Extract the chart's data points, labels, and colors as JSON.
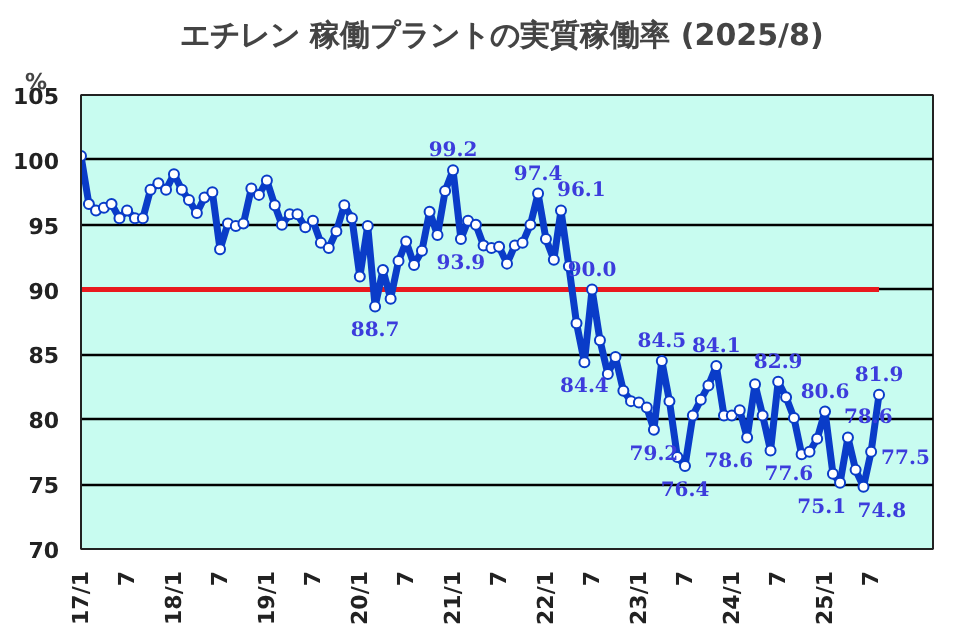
{
  "chart_data": {
    "type": "line",
    "title": "エチレン  稼働プラントの実質稼働率 (2025/8)",
    "ylabel": "%",
    "x": [
      "2017-01",
      "2017-02",
      "2017-03",
      "2017-04",
      "2017-05",
      "2017-06",
      "2017-07",
      "2017-08",
      "2017-09",
      "2017-10",
      "2017-11",
      "2017-12",
      "2018-01",
      "2018-02",
      "2018-03",
      "2018-04",
      "2018-05",
      "2018-06",
      "2018-07",
      "2018-08",
      "2018-09",
      "2018-10",
      "2018-11",
      "2018-12",
      "2019-01",
      "2019-02",
      "2019-03",
      "2019-04",
      "2019-05",
      "2019-06",
      "2019-07",
      "2019-08",
      "2019-09",
      "2019-10",
      "2019-11",
      "2019-12",
      "2020-01",
      "2020-02",
      "2020-03",
      "2020-04",
      "2020-05",
      "2020-06",
      "2020-07",
      "2020-08",
      "2020-09",
      "2020-10",
      "2020-11",
      "2020-12",
      "2021-01",
      "2021-02",
      "2021-03",
      "2021-04",
      "2021-05",
      "2021-06",
      "2021-07",
      "2021-08",
      "2021-09",
      "2021-10",
      "2021-11",
      "2021-12",
      "2022-01",
      "2022-02",
      "2022-03",
      "2022-04",
      "2022-05",
      "2022-06",
      "2022-07",
      "2022-08",
      "2022-09",
      "2022-10",
      "2022-11",
      "2022-12",
      "2023-01",
      "2023-02",
      "2023-03",
      "2023-04",
      "2023-05",
      "2023-06",
      "2023-07",
      "2023-08",
      "2023-09",
      "2023-10",
      "2023-11",
      "2023-12",
      "2024-01",
      "2024-02",
      "2024-03",
      "2024-04",
      "2024-05",
      "2024-06",
      "2024-07",
      "2024-08",
      "2024-09",
      "2024-10",
      "2024-11",
      "2024-12",
      "2025-01",
      "2025-02",
      "2025-03",
      "2025-04",
      "2025-05",
      "2025-06",
      "2025-07",
      "2025-08"
    ],
    "series": [
      {
        "color": "#0a3cc8",
        "values": [
          100.3,
          96.6,
          96.1,
          96.3,
          96.6,
          95.5,
          96.1,
          95.5,
          95.5,
          97.7,
          98.2,
          97.7,
          98.9,
          97.7,
          96.9,
          95.9,
          97.1,
          97.5,
          93.1,
          95.1,
          94.9,
          95.1,
          97.8,
          97.3,
          98.4,
          96.5,
          95.0,
          95.8,
          95.8,
          94.8,
          95.3,
          93.6,
          93.2,
          94.5,
          96.5,
          95.5,
          91.0,
          94.9,
          88.7,
          91.5,
          89.3,
          92.2,
          93.7,
          91.9,
          93.0,
          96.0,
          94.2,
          97.6,
          99.2,
          93.9,
          95.3,
          95.0,
          93.4,
          93.2,
          93.3,
          92.0,
          93.4,
          93.6,
          95.0,
          97.4,
          93.9,
          92.3,
          96.1,
          91.8,
          87.4,
          84.4,
          90.0,
          86.1,
          83.5,
          84.8,
          82.2,
          81.4,
          81.3,
          80.9,
          79.2,
          84.5,
          81.4,
          77.1,
          76.4,
          80.3,
          81.5,
          82.6,
          84.1,
          80.3,
          80.3,
          80.7,
          78.6,
          82.7,
          80.3,
          77.6,
          82.9,
          81.7,
          80.1,
          77.3,
          77.5,
          78.5,
          80.6,
          75.8,
          75.1,
          78.6,
          76.1,
          74.8,
          77.5,
          81.9
        ],
        "value_labels": [
          null,
          null,
          null,
          null,
          null,
          null,
          null,
          null,
          null,
          null,
          null,
          null,
          null,
          null,
          null,
          null,
          null,
          null,
          null,
          null,
          null,
          null,
          null,
          null,
          null,
          null,
          null,
          null,
          null,
          null,
          null,
          null,
          null,
          null,
          null,
          null,
          null,
          null,
          "88.7",
          null,
          null,
          null,
          null,
          null,
          null,
          null,
          null,
          null,
          "99.2",
          "93.9",
          null,
          null,
          null,
          null,
          null,
          null,
          null,
          null,
          null,
          "97.4",
          null,
          null,
          "96.1",
          null,
          null,
          "84.4",
          "90.0",
          null,
          null,
          null,
          null,
          null,
          null,
          null,
          "79.2",
          "84.5",
          null,
          null,
          "76.4",
          null,
          null,
          null,
          "84.1",
          null,
          null,
          null,
          "78.6",
          null,
          null,
          "77.6",
          "82.9",
          null,
          null,
          null,
          null,
          null,
          "80.6",
          null,
          "75.1",
          "78.6",
          null,
          "74.8",
          "77.5",
          "81.9"
        ]
      }
    ],
    "xlim": [
      "2017-01",
      "2026-03"
    ],
    "xticks": [
      {
        "value": "2017-01",
        "label": "17/1"
      },
      {
        "value": "2017-07",
        "label": "7"
      },
      {
        "value": "2018-01",
        "label": "18/1"
      },
      {
        "value": "2018-07",
        "label": "7"
      },
      {
        "value": "2019-01",
        "label": "19/1"
      },
      {
        "value": "2019-07",
        "label": "7"
      },
      {
        "value": "2020-01",
        "label": "20/1"
      },
      {
        "value": "2020-07",
        "label": "7"
      },
      {
        "value": "2021-01",
        "label": "21/1"
      },
      {
        "value": "2021-07",
        "label": "7"
      },
      {
        "value": "2022-01",
        "label": "22/1"
      },
      {
        "value": "2022-07",
        "label": "7"
      },
      {
        "value": "2023-01",
        "label": "23/1"
      },
      {
        "value": "2023-07",
        "label": "7"
      },
      {
        "value": "2024-01",
        "label": "24/1"
      },
      {
        "value": "2024-07",
        "label": "7"
      },
      {
        "value": "2025-01",
        "label": "25/1"
      },
      {
        "value": "2025-07",
        "label": "7"
      }
    ],
    "ylim": [
      70,
      105
    ],
    "yticks": [
      70,
      75,
      80,
      85,
      90,
      95,
      100,
      105
    ],
    "ref_lines": [
      {
        "axis": "y",
        "value": 90,
        "color": "#e8191e"
      }
    ],
    "grid": "y",
    "marker": "circle",
    "line_style": "solid"
  }
}
